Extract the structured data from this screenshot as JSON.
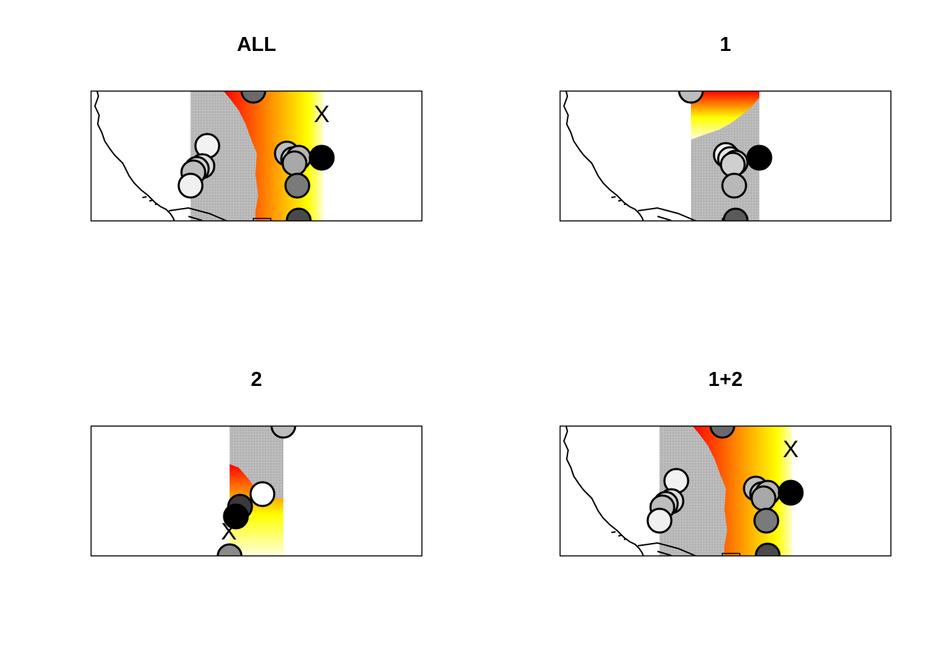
{
  "panels": [
    {
      "id": "all",
      "title": "ALL",
      "cross_label": "X",
      "points": [
        {
          "fill": "#6a6a6a"
        },
        {
          "fill": "#f2f2f2"
        },
        {
          "fill": "#dcdcdc"
        },
        {
          "fill": "#cfcfcf"
        },
        {
          "fill": "#bdbdbd"
        },
        {
          "fill": "#f0f0f0"
        },
        {
          "fill": "#bdbdbd"
        },
        {
          "fill": "#c8c8c8"
        },
        {
          "fill": "#b4b4b4"
        },
        {
          "fill": "#a8a8a8"
        },
        {
          "fill": "#000000"
        },
        {
          "fill": "#7a7a7a"
        },
        {
          "fill": "#4a4a4a"
        }
      ]
    },
    {
      "id": "one",
      "title": "1",
      "cross_label": "",
      "points": [
        {
          "fill": "#bdbdbd"
        },
        {
          "fill": "#f2f2f2"
        },
        {
          "fill": "#e6e6e6"
        },
        {
          "fill": "#dadada"
        },
        {
          "fill": "#cfcfcf"
        },
        {
          "fill": "#000000"
        },
        {
          "fill": "#b8b8b8"
        },
        {
          "fill": "#5a5a5a"
        }
      ]
    },
    {
      "id": "two",
      "title": "2",
      "cross_label": "X",
      "points": [
        {
          "fill": "#bdbdbd"
        },
        {
          "fill": "#ffffff"
        },
        {
          "fill": "#3a3a3a"
        },
        {
          "fill": "#000000"
        },
        {
          "fill": "#8a8a8a"
        }
      ]
    },
    {
      "id": "onetwo",
      "title": "1+2",
      "cross_label": "X",
      "points": [
        {
          "fill": "#6a6a6a"
        },
        {
          "fill": "#f2f2f2"
        },
        {
          "fill": "#dcdcdc"
        },
        {
          "fill": "#cfcfcf"
        },
        {
          "fill": "#bdbdbd"
        },
        {
          "fill": "#f0f0f0"
        },
        {
          "fill": "#bdbdbd"
        },
        {
          "fill": "#c8c8c8"
        },
        {
          "fill": "#b4b4b4"
        },
        {
          "fill": "#a8a8a8"
        },
        {
          "fill": "#000000"
        },
        {
          "fill": "#7a7a7a"
        },
        {
          "fill": "#4a4a4a"
        }
      ]
    }
  ],
  "colors": {
    "grey_band": "#b3b3b3",
    "heat_red": "#ff0000",
    "heat_yellow": "#ffff00",
    "heat_pale": "#ffffcc",
    "coastline": "#000000",
    "point_stroke": "#000000"
  }
}
